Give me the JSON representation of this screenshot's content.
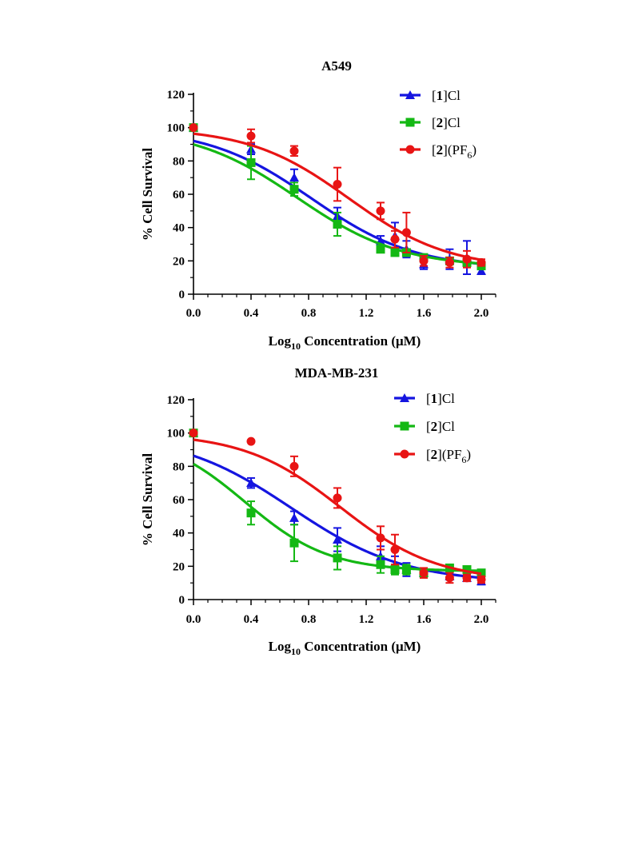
{
  "chart_data": [
    {
      "type": "scatter",
      "title": "A549",
      "xlabel": "Log₁₀ Concentration (μM)",
      "ylabel": "% Cell Survival",
      "xlim": [
        0,
        2.1
      ],
      "ylim": [
        0,
        120
      ],
      "xticks": [
        "0.0",
        "0.4",
        "0.8",
        "1.2",
        "1.6",
        "2.0"
      ],
      "yticks": [
        "0",
        "20",
        "40",
        "60",
        "80",
        "100",
        "120"
      ],
      "legend_position": "top-right",
      "series": [
        {
          "name": "[1]Cl",
          "legend_parts": [
            "[",
            "1",
            "]Cl"
          ],
          "legend_sub": "",
          "color": "#1515e0",
          "marker": "triangle",
          "x": [
            0.0,
            0.4,
            0.7,
            1.0,
            1.3,
            1.4,
            1.48,
            1.6,
            1.78,
            1.9,
            2.0
          ],
          "y": [
            100,
            87,
            70,
            47,
            32,
            35,
            27,
            18,
            21,
            22,
            14
          ],
          "err": [
            1,
            3,
            5,
            5,
            3,
            8,
            5,
            3,
            6,
            10,
            2
          ],
          "fit": {
            "top": 100,
            "bottom": 15,
            "logec50": 0.82,
            "hill": 1.2
          }
        },
        {
          "name": "[2]Cl",
          "legend_parts": [
            "[",
            "2",
            "]Cl"
          ],
          "legend_sub": "",
          "color": "#14b814",
          "marker": "square",
          "x": [
            0.0,
            0.4,
            0.7,
            1.0,
            1.3,
            1.4,
            1.48,
            1.6,
            1.78,
            1.9,
            2.0
          ],
          "y": [
            100,
            79,
            63,
            42,
            27,
            25,
            25,
            22,
            20,
            19,
            17
          ],
          "err": [
            1,
            10,
            4,
            7,
            2,
            2,
            2,
            2,
            2,
            2,
            2
          ],
          "fit": {
            "top": 100,
            "bottom": 16,
            "logec50": 0.72,
            "hill": 1.2
          }
        },
        {
          "name": "[2](PF6)",
          "legend_parts": [
            "[",
            "2",
            "](PF"
          ],
          "legend_sub": "6",
          "color": "#e81414",
          "marker": "circle",
          "x": [
            0.0,
            0.4,
            0.7,
            1.0,
            1.3,
            1.4,
            1.48,
            1.6,
            1.78,
            1.9,
            2.0
          ],
          "y": [
            100,
            95,
            86,
            66,
            50,
            33,
            37,
            20,
            19,
            21,
            19
          ],
          "err": [
            1,
            4,
            3,
            10,
            5,
            5,
            12,
            3,
            3,
            5,
            2
          ],
          "fit": {
            "top": 100,
            "bottom": 15,
            "logec50": 1.08,
            "hill": 1.25
          }
        }
      ]
    },
    {
      "type": "scatter",
      "title": "MDA-MB-231",
      "xlabel": "Log₁₀ Concentration (μM)",
      "ylabel": "% Cell Survival",
      "xlim": [
        0,
        2.1
      ],
      "ylim": [
        0,
        120
      ],
      "xticks": [
        "0.0",
        "0.4",
        "0.8",
        "1.2",
        "1.6",
        "2.0"
      ],
      "yticks": [
        "0",
        "20",
        "40",
        "60",
        "80",
        "100",
        "120"
      ],
      "legend_position": "top-right",
      "series": [
        {
          "name": "[1]Cl",
          "legend_parts": [
            "[",
            "1",
            "]Cl"
          ],
          "legend_sub": "",
          "color": "#1515e0",
          "marker": "triangle",
          "x": [
            0.0,
            0.4,
            0.7,
            1.0,
            1.3,
            1.4,
            1.48,
            1.6,
            1.78,
            1.9,
            2.0
          ],
          "y": [
            100,
            70,
            49,
            36,
            26,
            21,
            18,
            16,
            14,
            13,
            11
          ],
          "err": [
            1,
            3,
            4,
            7,
            6,
            5,
            4,
            2,
            2,
            2,
            2
          ],
          "fit": {
            "top": 100,
            "bottom": 10,
            "logec50": 0.68,
            "hill": 1.1
          }
        },
        {
          "name": "[2]Cl",
          "legend_parts": [
            "[",
            "2",
            "]Cl"
          ],
          "legend_sub": "",
          "color": "#14b814",
          "marker": "square",
          "x": [
            0.0,
            0.4,
            0.7,
            1.0,
            1.3,
            1.4,
            1.48,
            1.6,
            1.78,
            1.9,
            2.0
          ],
          "y": [
            100,
            52,
            34,
            25,
            21,
            18,
            18,
            16,
            19,
            18,
            16
          ],
          "err": [
            1,
            7,
            11,
            7,
            5,
            3,
            3,
            2,
            2,
            2,
            2
          ],
          "fit": {
            "top": 100,
            "bottom": 17,
            "logec50": 0.36,
            "hill": 1.5
          }
        },
        {
          "name": "[2](PF6)",
          "legend_parts": [
            "[",
            "2",
            "](PF"
          ],
          "legend_sub": "6",
          "color": "#e81414",
          "marker": "circle",
          "x": [
            0.0,
            0.4,
            0.7,
            1.0,
            1.3,
            1.4,
            1.6,
            1.78,
            1.9,
            2.0
          ],
          "y": [
            100,
            95,
            80,
            61,
            37,
            30,
            16,
            13,
            13,
            12
          ],
          "err": [
            1,
            1,
            6,
            6,
            7,
            9,
            3,
            3,
            2,
            2
          ],
          "fit": {
            "top": 100,
            "bottom": 11,
            "logec50": 1.02,
            "hill": 1.3
          }
        }
      ]
    }
  ]
}
